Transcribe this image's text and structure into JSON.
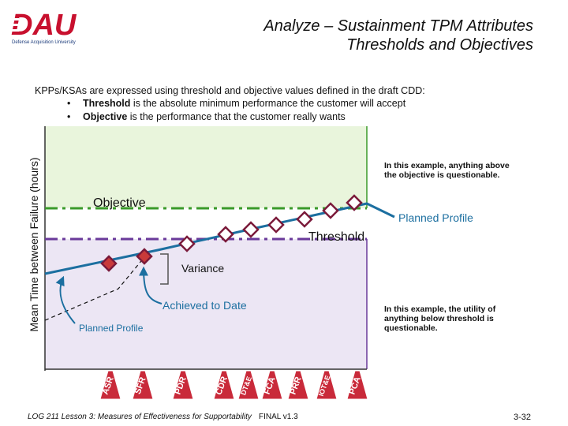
{
  "logo": {
    "letters": "DAU",
    "tagline": "Defense Acquisition University"
  },
  "title": {
    "line1": "Analyze – Sustainment TPM Attributes",
    "line2": "Thresholds and Objectives"
  },
  "intro": {
    "text": "KPPs/KSAs are expressed using threshold and objective values defined in the draft CDD:",
    "bullets": [
      {
        "marker": "•",
        "term": "Threshold",
        "rest": " is the absolute minimum performance the customer will accept"
      },
      {
        "marker": "•",
        "term": "Objective",
        "rest": " is the performance that the customer really wants"
      }
    ]
  },
  "axis": {
    "ylabel": "Mean Time between Failure (hours)"
  },
  "labels": {
    "objective": "Objective",
    "threshold": "Threshold",
    "planned_profile_right": "Planned Profile",
    "planned_profile_left": "Planned Profile",
    "variance": "Variance",
    "achieved": "Achieved to Date"
  },
  "notes": {
    "top_line1": "In this example, anything above",
    "top_line2": "the objective is questionable.",
    "bottom_line1": "In this example, the utility of",
    "bottom_line2": "anything below threshold is",
    "bottom_line3": "questionable."
  },
  "milestones": [
    "ASR",
    "SFR",
    "PDR",
    "CDR",
    "DT&E",
    "FCA",
    "PRR",
    "IOT&E",
    "PCA"
  ],
  "footer": {
    "left": "LOG 211 Lesson 3: Measures of Effectiveness for Supportability",
    "middle": "FINAL v1.3",
    "page": "3-32"
  },
  "colors": {
    "objective_zone": "#e9f5dc",
    "objective_line": "#3a9a2a",
    "threshold_zone": "#ece6f4",
    "threshold_line": "#6a3a9a",
    "profile_line": "#1c6fa0",
    "marker_fill": "#c93a3a",
    "marker_stroke": "#7a1a3a",
    "milestone_fill": "#c92a3a"
  }
}
